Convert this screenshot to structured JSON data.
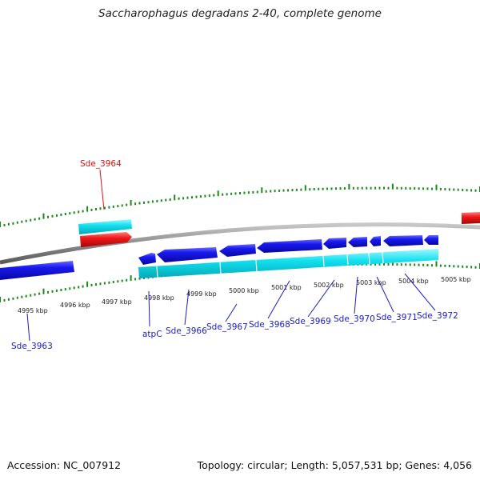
{
  "title": "Saccharophagus degradans 2-40, complete genome",
  "footer": {
    "accession": "Accession: NC_007912",
    "topology": "Topology: circular; Length: 5,057,531 bp; Genes: 4,056"
  },
  "kbp_labels": [
    "4995 kbp",
    "4996 kbp",
    "4997 kbp",
    "4998 kbp",
    "4999 kbp",
    "5000 kbp",
    "5001 kbp",
    "5002 kbp",
    "5003 kbp",
    "5004 kbp",
    "5005 kbp"
  ],
  "gene_labels": [
    "Sde_3964",
    "Sde_3963",
    "atpC",
    "Sde_3966",
    "Sde_3967",
    "Sde_3968",
    "Sde_3969",
    "Sde_3970",
    "Sde_3971",
    "Sde_3972"
  ],
  "colors": {
    "cds_blue": "#1010dd",
    "cds_cyan": "#11e0ef",
    "rrna_red": "#ee1111",
    "tick_green": "#1a8a1a",
    "backbone": "#8a8a8a",
    "label_blue": "#1a1acc",
    "label_red": "#dd1111"
  }
}
